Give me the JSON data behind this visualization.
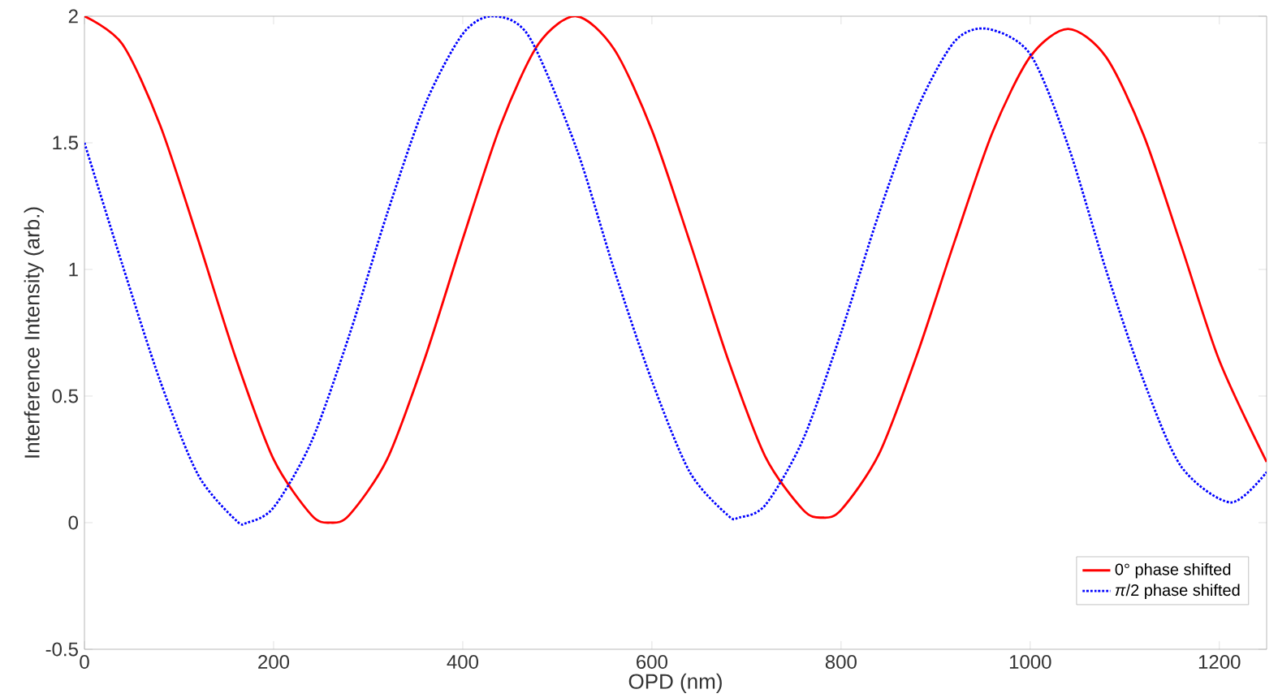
{
  "chart_data": {
    "type": "line",
    "xlabel": "OPD (nm)",
    "ylabel": "Interference Intensity (arb.)",
    "xlim": [
      0,
      1250
    ],
    "ylim": [
      -0.5,
      2
    ],
    "xticks": [
      0,
      200,
      400,
      600,
      800,
      1000,
      1200
    ],
    "yticks": [
      -0.5,
      0,
      0.5,
      1,
      1.5,
      2
    ],
    "grid": false,
    "legend": "bottom right",
    "marker": "none",
    "series": [
      {
        "name": "0° phase shifted",
        "color": "#ff0000",
        "line_style": "solid",
        "x": [
          0,
          40,
          80,
          120,
          160,
          200,
          240,
          260,
          280,
          320,
          360,
          400,
          440,
          480,
          520,
          560,
          600,
          640,
          680,
          720,
          760,
          780,
          800,
          840,
          880,
          920,
          960,
          1000,
          1040,
          1080,
          1120,
          1160,
          1200,
          1250
        ],
        "values": [
          2.0,
          1.89,
          1.57,
          1.12,
          0.65,
          0.25,
          0.03,
          0.0,
          0.03,
          0.25,
          0.65,
          1.12,
          1.57,
          1.89,
          2.0,
          1.87,
          1.55,
          1.11,
          0.65,
          0.26,
          0.05,
          0.02,
          0.05,
          0.27,
          0.66,
          1.11,
          1.54,
          1.84,
          1.95,
          1.84,
          1.53,
          1.09,
          0.64,
          0.24
        ]
      },
      {
        "name": "*π*/2 phase shifted",
        "color": "#0000ff",
        "line_style": "dotted",
        "x": [
          0,
          40,
          80,
          120,
          160,
          172,
          200,
          240,
          280,
          320,
          360,
          400,
          432,
          470,
          520,
          560,
          600,
          640,
          680,
          692,
          720,
          760,
          800,
          840,
          880,
          920,
          955,
          1000,
          1040,
          1080,
          1120,
          1160,
          1212,
          1250
        ],
        "values": [
          1.5,
          1.02,
          0.56,
          0.19,
          0.01,
          0.0,
          0.06,
          0.32,
          0.74,
          1.22,
          1.65,
          1.93,
          2.0,
          1.92,
          1.48,
          1.0,
          0.56,
          0.2,
          0.03,
          0.02,
          0.07,
          0.33,
          0.75,
          1.22,
          1.63,
          1.9,
          1.95,
          1.85,
          1.49,
          1.0,
          0.56,
          0.22,
          0.08,
          0.2
        ]
      }
    ]
  }
}
